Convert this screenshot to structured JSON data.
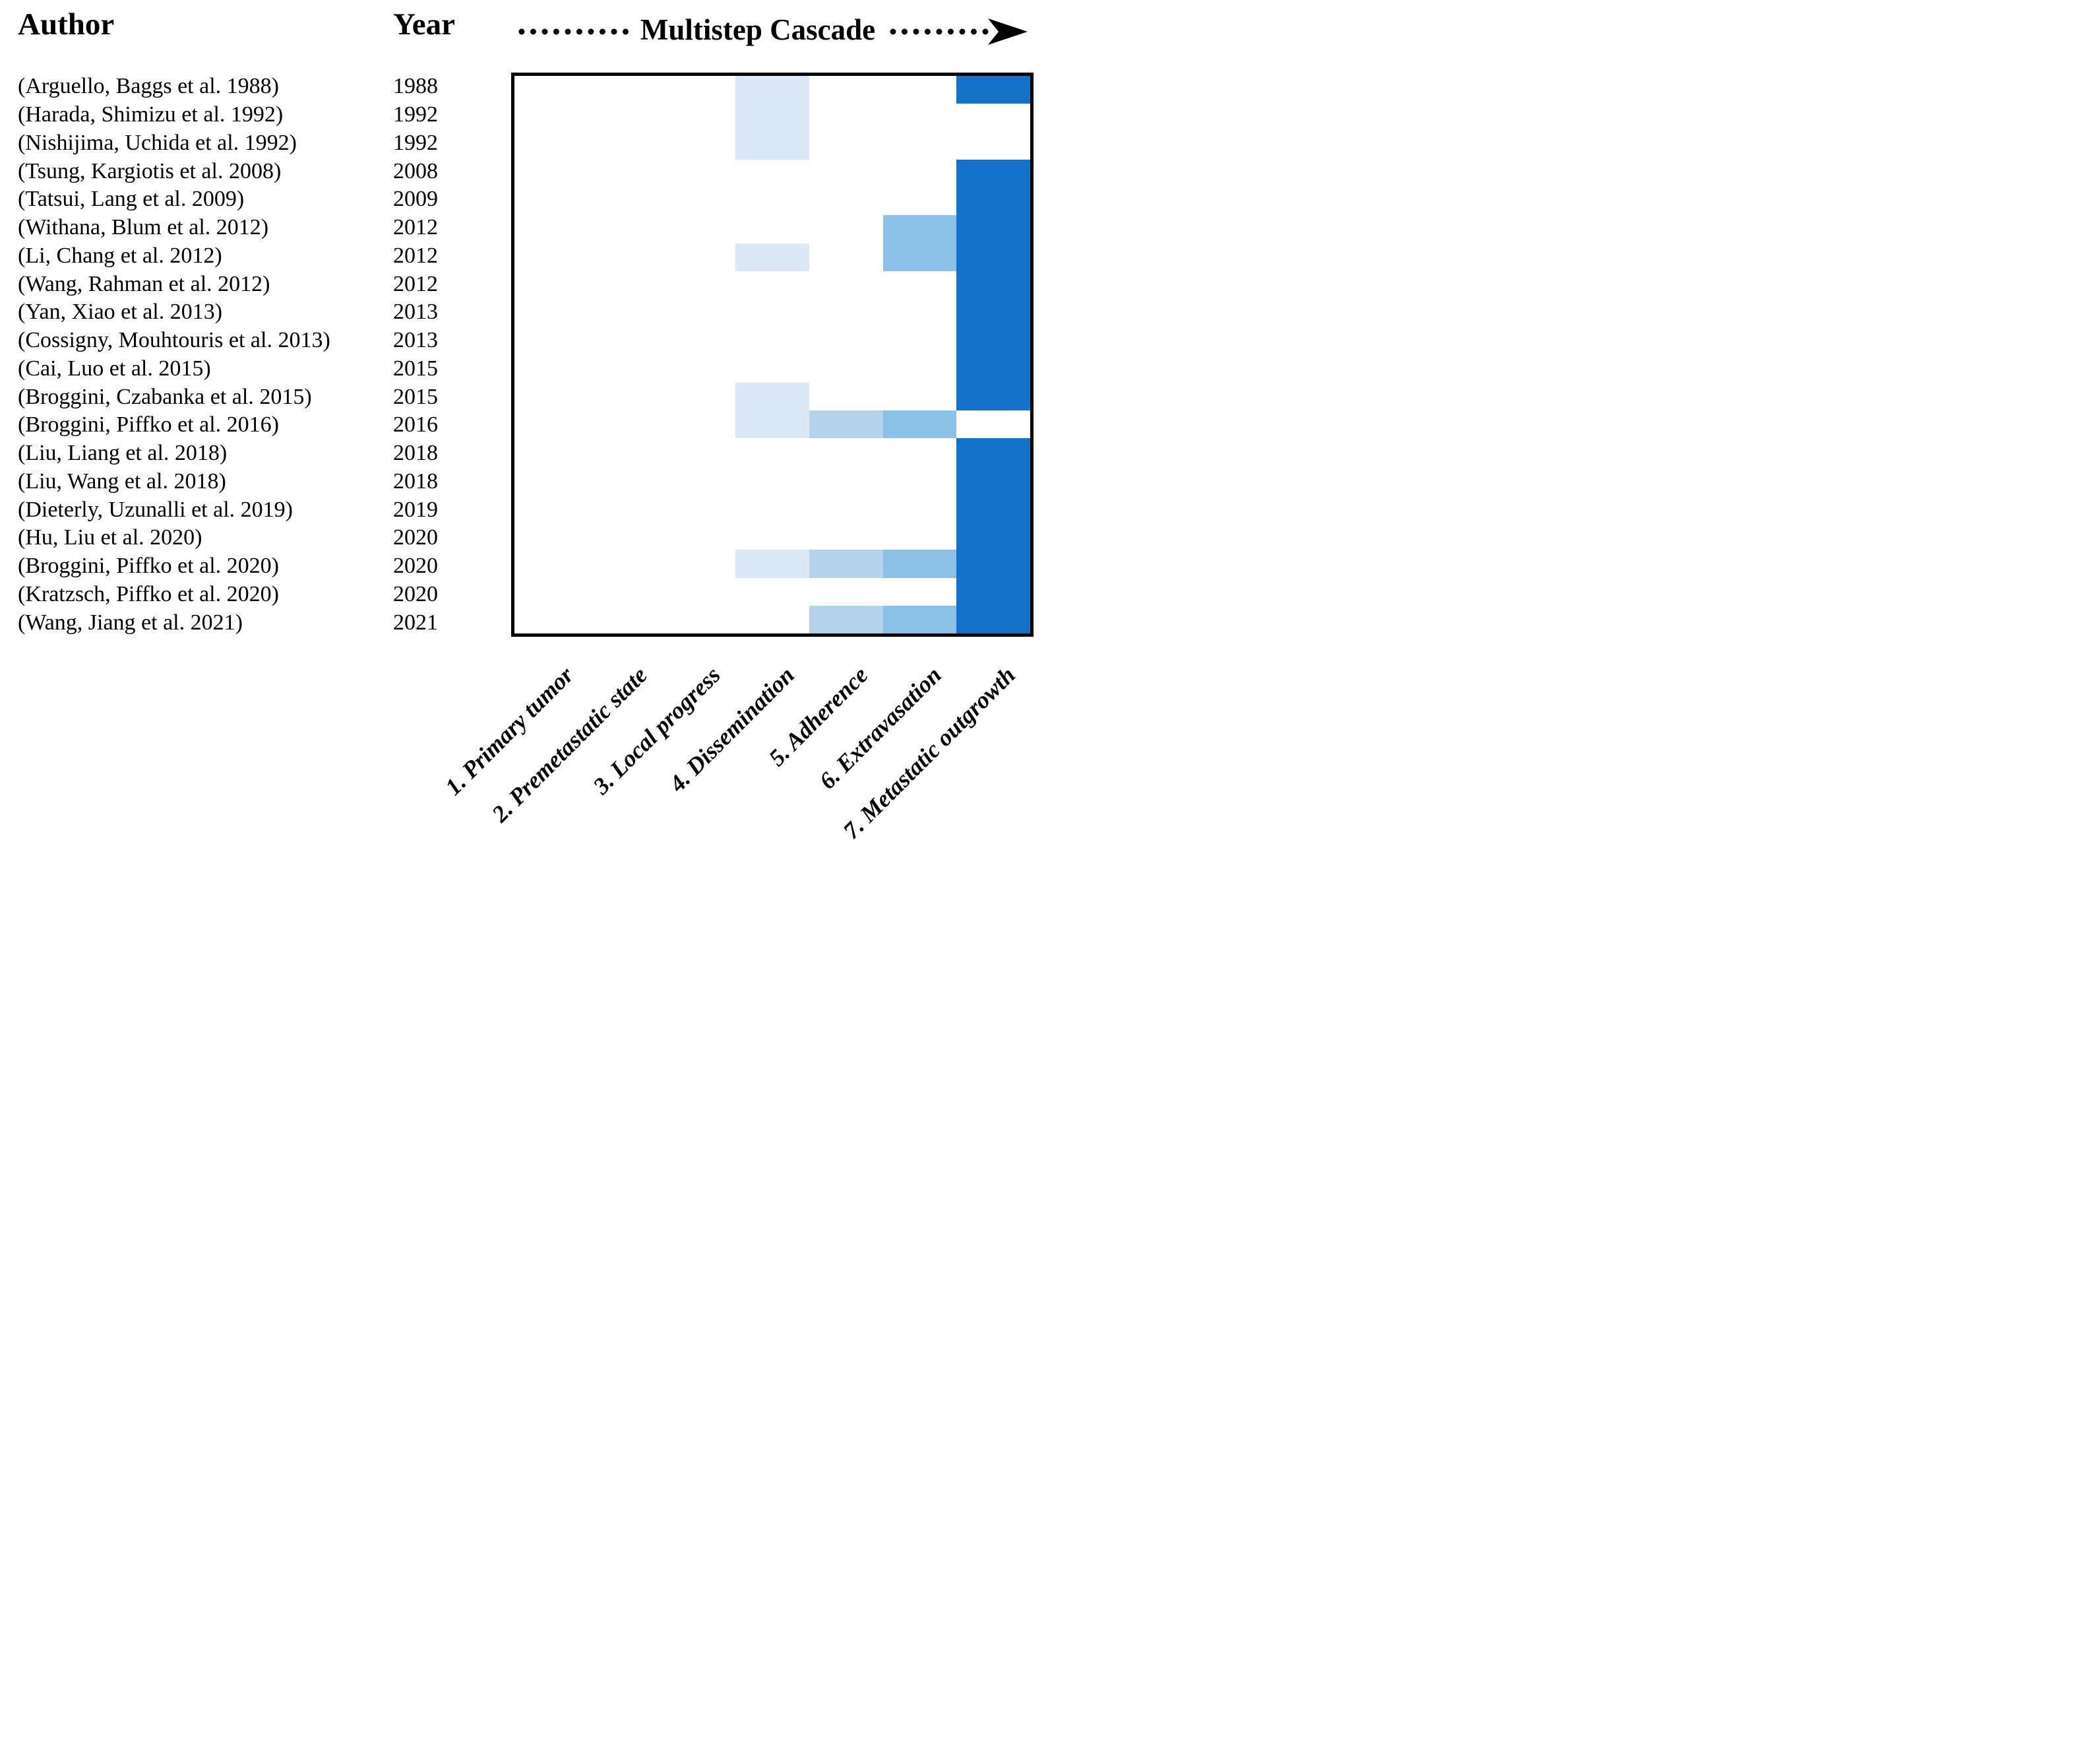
{
  "header": {
    "author": "Author",
    "year": "Year",
    "cascade": "Multistep Cascade"
  },
  "chart_data": {
    "type": "heatmap",
    "title": "Multistep Cascade",
    "x_axis_note": "columns are sequential steps of the metastatic cascade, read left to right",
    "columns": [
      "1. Primary tumor",
      "2. Premetastatic state",
      "3. Local progress",
      "4. Dissemination",
      "5. Adherence",
      "6. Extravasation",
      "7. Metastatic outgrowth"
    ],
    "rows": [
      {
        "author": "(Arguello, Baggs et al. 1988)",
        "year": "1988",
        "steps": [
          0,
          0,
          0,
          1,
          0,
          0,
          4
        ]
      },
      {
        "author": "(Harada, Shimizu et al. 1992)",
        "year": "1992",
        "steps": [
          0,
          0,
          0,
          1,
          0,
          0,
          0
        ]
      },
      {
        "author": "(Nishijima, Uchida et al. 1992)",
        "year": "1992",
        "steps": [
          0,
          0,
          0,
          1,
          0,
          0,
          0
        ]
      },
      {
        "author": "(Tsung, Kargiotis et al. 2008)",
        "year": "2008",
        "steps": [
          0,
          0,
          0,
          0,
          0,
          0,
          4
        ]
      },
      {
        "author": "(Tatsui, Lang et al. 2009)",
        "year": "2009",
        "steps": [
          0,
          0,
          0,
          0,
          0,
          0,
          4
        ]
      },
      {
        "author": "(Withana, Blum et al. 2012)",
        "year": "2012",
        "steps": [
          0,
          0,
          0,
          0,
          0,
          3,
          4
        ]
      },
      {
        "author": "(Li, Chang et al. 2012)",
        "year": "2012",
        "steps": [
          0,
          0,
          0,
          1,
          0,
          3,
          4
        ]
      },
      {
        "author": "(Wang, Rahman et al. 2012)",
        "year": "2012",
        "steps": [
          0,
          0,
          0,
          0,
          0,
          0,
          4
        ]
      },
      {
        "author": "(Yan, Xiao et al. 2013)",
        "year": "2013",
        "steps": [
          0,
          0,
          0,
          0,
          0,
          0,
          4
        ]
      },
      {
        "author": "(Cossigny, Mouhtouris et al. 2013)",
        "year": "2013",
        "steps": [
          0,
          0,
          0,
          0,
          0,
          0,
          4
        ]
      },
      {
        "author": "(Cai, Luo et al. 2015)",
        "year": "2015",
        "steps": [
          0,
          0,
          0,
          0,
          0,
          0,
          4
        ]
      },
      {
        "author": "(Broggini, Czabanka et al. 2015)",
        "year": "2015",
        "steps": [
          0,
          0,
          0,
          1,
          0,
          0,
          4
        ]
      },
      {
        "author": "(Broggini, Piffko et al. 2016)",
        "year": "2016",
        "steps": [
          0,
          0,
          0,
          1,
          2,
          3,
          0
        ]
      },
      {
        "author": "(Liu, Liang et al. 2018)",
        "year": "2018",
        "steps": [
          0,
          0,
          0,
          0,
          0,
          0,
          4
        ]
      },
      {
        "author": "(Liu, Wang et al. 2018)",
        "year": "2018",
        "steps": [
          0,
          0,
          0,
          0,
          0,
          0,
          4
        ]
      },
      {
        "author": "(Dieterly, Uzunalli et al. 2019)",
        "year": "2019",
        "steps": [
          0,
          0,
          0,
          0,
          0,
          0,
          4
        ]
      },
      {
        "author": "(Hu, Liu et al. 2020)",
        "year": "2020",
        "steps": [
          0,
          0,
          0,
          0,
          0,
          0,
          4
        ]
      },
      {
        "author": "(Broggini, Piffko et al. 2020)",
        "year": "2020",
        "steps": [
          0,
          0,
          0,
          1,
          2,
          3,
          4
        ]
      },
      {
        "author": "(Kratzsch, Piffko et al. 2020)",
        "year": "2020",
        "steps": [
          0,
          0,
          0,
          0,
          0,
          0,
          4
        ]
      },
      {
        "author": "(Wang, Jiang et al. 2021)",
        "year": "2021",
        "steps": [
          0,
          0,
          0,
          0,
          2,
          3,
          4
        ]
      }
    ],
    "intensity_colors": {
      "0": "#ffffff",
      "1": "#dbe9f6",
      "2": "#b6d3ec",
      "3": "#8cc2e8",
      "4": "#1472c8"
    },
    "grid_border_color": "#000000",
    "legend_position": "none"
  }
}
